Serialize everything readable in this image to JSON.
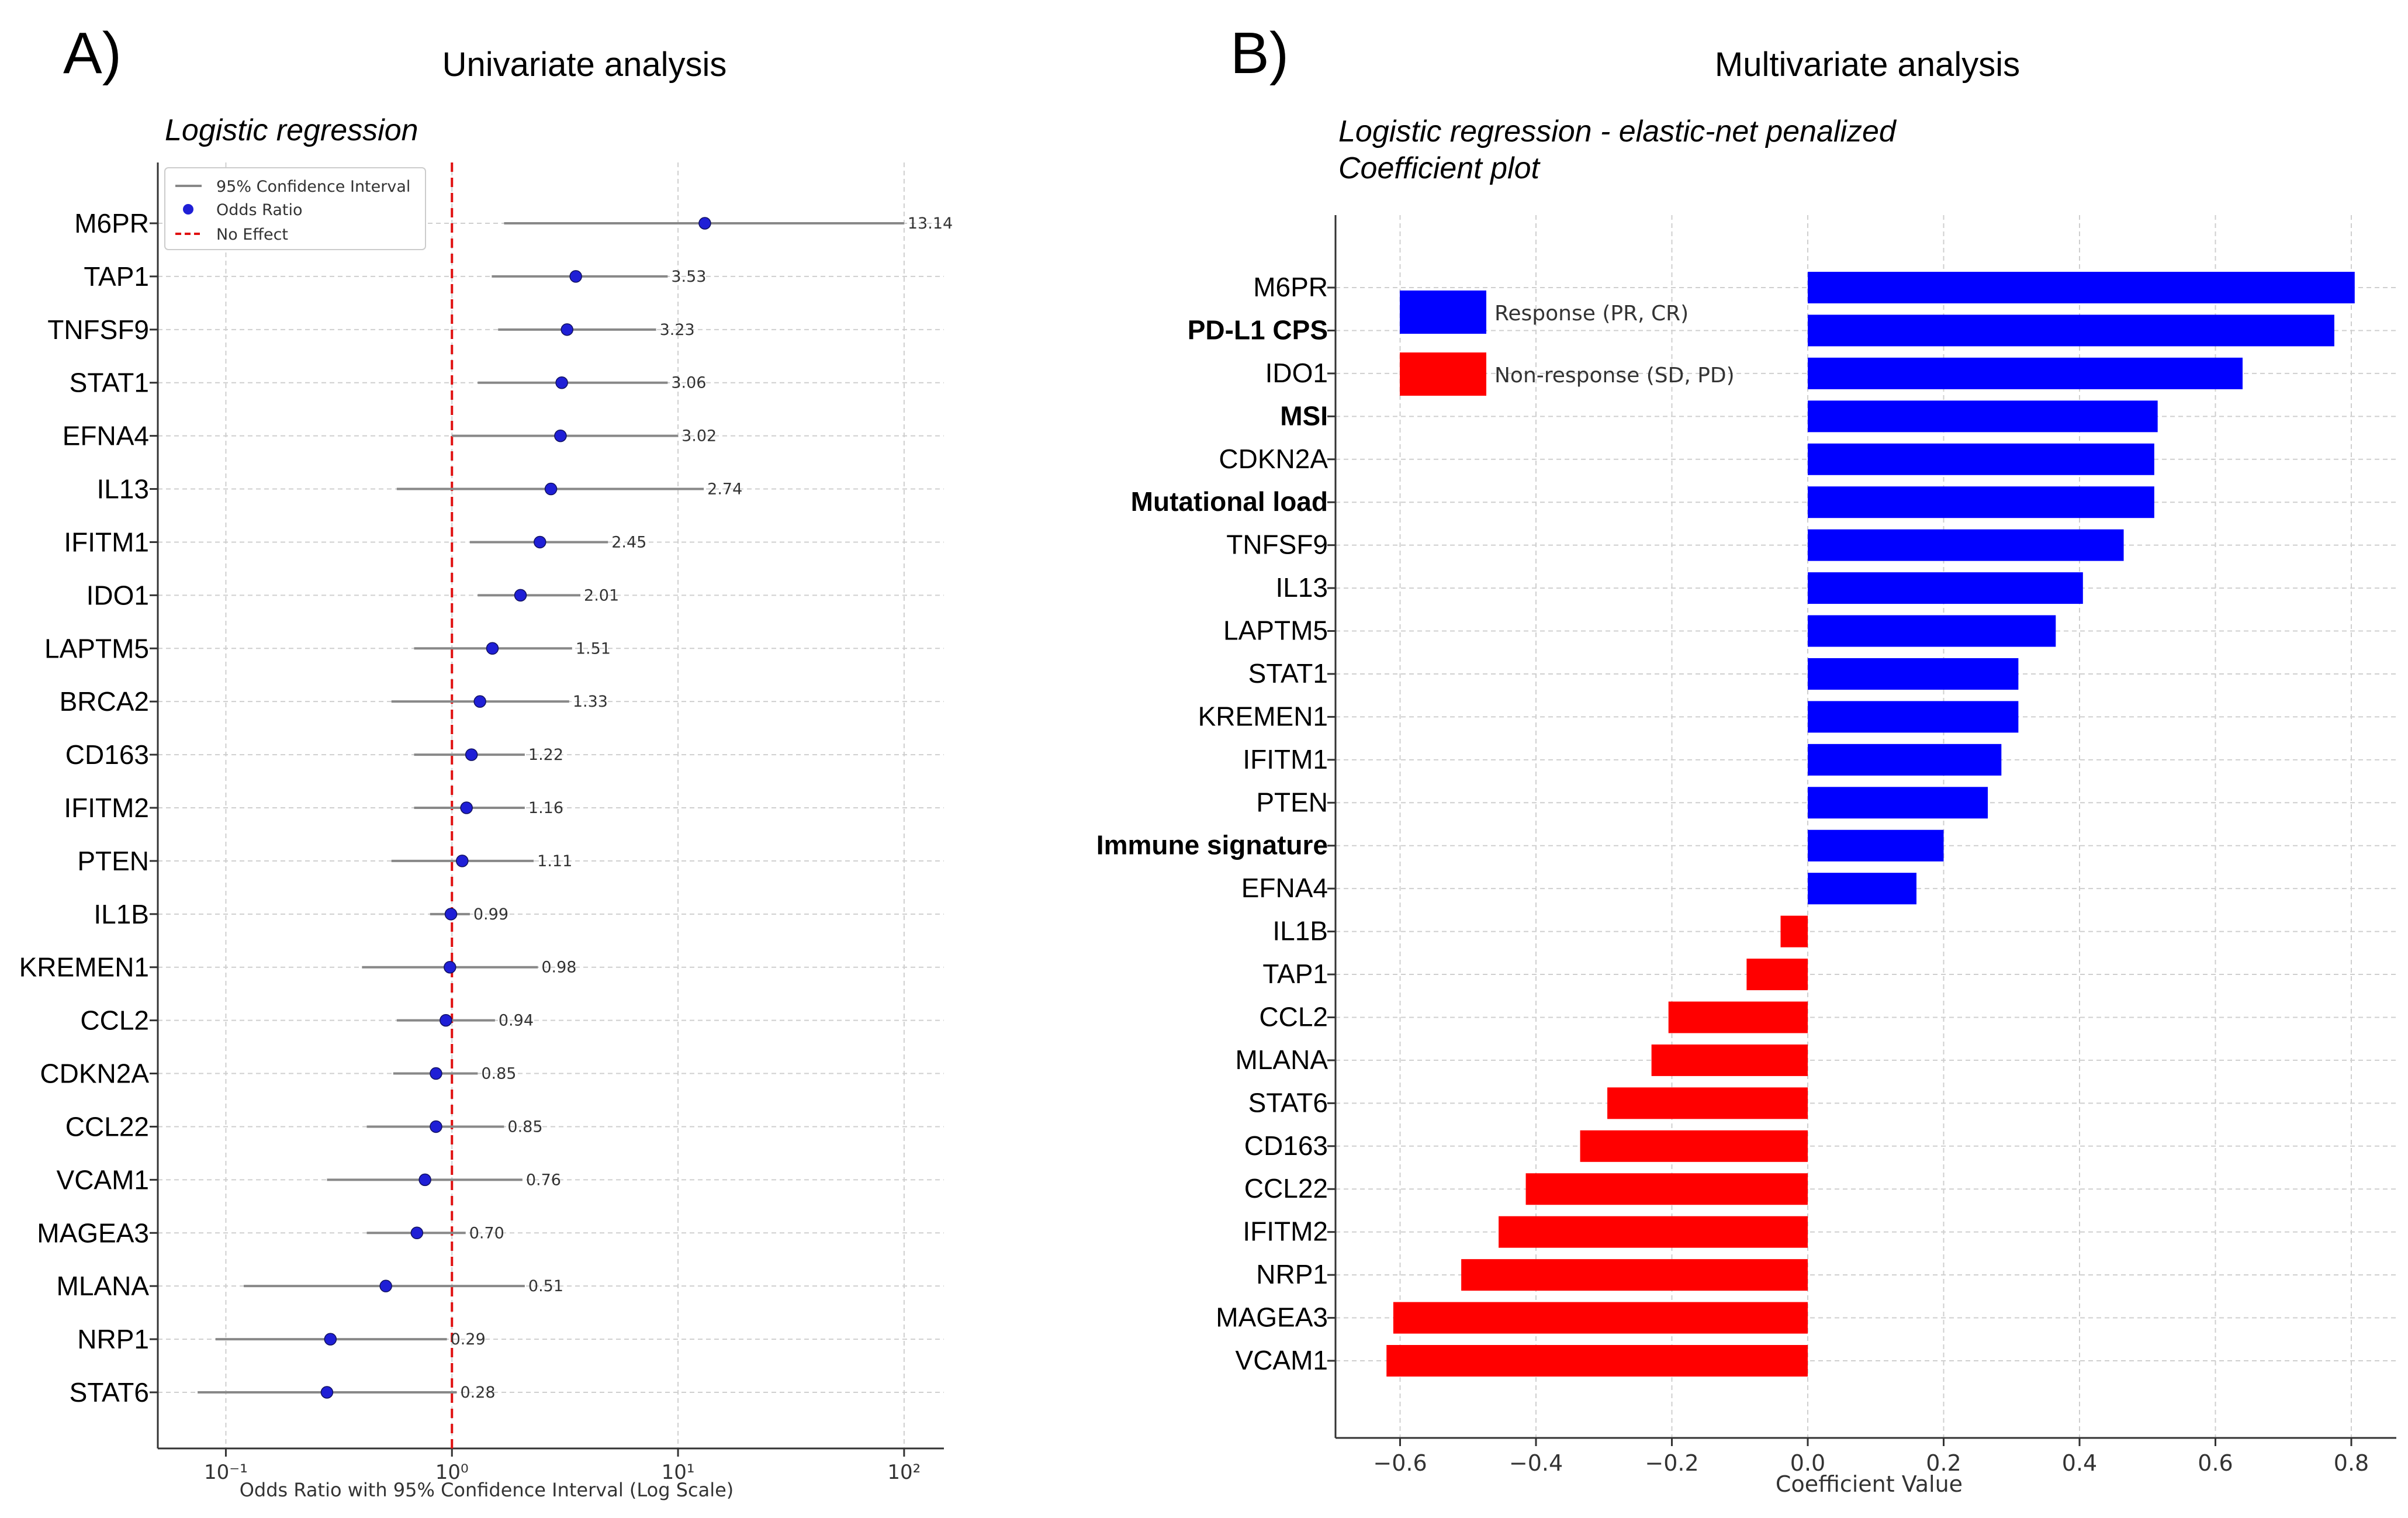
{
  "panel_a": {
    "letter": "A)",
    "title": "Univariate analysis",
    "subtitle": "Logistic regression"
  },
  "panel_b": {
    "letter": "B)",
    "title": "Multivariate analysis",
    "subtitle_line1": "Logistic regression - elastic-net penalized",
    "subtitle_line2": "Coefficient plot"
  },
  "chart_data": [
    {
      "type": "scatter",
      "subtype": "forest-plot",
      "title": "Univariate analysis",
      "subtitle": "Logistic regression",
      "xlabel": "Odds Ratio with 95% Confidence Interval (Log Scale)",
      "xscale": "log",
      "xlim": [
        0.05,
        150
      ],
      "xticks": [
        "10⁻¹",
        "10⁰",
        "10¹",
        "10²"
      ],
      "grid": true,
      "legend": [
        "95% Confidence Interval",
        "Odds Ratio",
        "No Effect"
      ],
      "legend_position": "top-left",
      "reference_line": 1,
      "colors": {
        "point": "#1f1fd6",
        "ci": "#888888",
        "reference": "#e01010"
      },
      "rows": [
        {
          "label": "M6PR",
          "or": 13.14,
          "or_label": "13.14",
          "ci": [
            1.7,
            100
          ]
        },
        {
          "label": "TAP1",
          "or": 3.53,
          "or_label": "3.53",
          "ci": [
            1.5,
            9
          ]
        },
        {
          "label": "TNFSF9",
          "or": 3.23,
          "or_label": "3.23",
          "ci": [
            1.6,
            8
          ]
        },
        {
          "label": "STAT1",
          "or": 3.06,
          "or_label": "3.06",
          "ci": [
            1.3,
            9
          ]
        },
        {
          "label": "EFNA4",
          "or": 3.02,
          "or_label": "3.02",
          "ci": [
            1.0,
            10
          ]
        },
        {
          "label": "IL13",
          "or": 2.74,
          "or_label": "2.74",
          "ci": [
            0.57,
            13
          ]
        },
        {
          "label": "IFITM1",
          "or": 2.45,
          "or_label": "2.45",
          "ci": [
            1.2,
            4.9
          ]
        },
        {
          "label": "IDO1",
          "or": 2.01,
          "or_label": "2.01",
          "ci": [
            1.3,
            3.7
          ]
        },
        {
          "label": "LAPTM5",
          "or": 1.51,
          "or_label": "1.51",
          "ci": [
            0.68,
            3.4
          ]
        },
        {
          "label": "BRCA2",
          "or": 1.33,
          "or_label": "1.33",
          "ci": [
            0.54,
            3.3
          ]
        },
        {
          "label": "CD163",
          "or": 1.22,
          "or_label": "1.22",
          "ci": [
            0.68,
            2.1
          ]
        },
        {
          "label": "IFITM2",
          "or": 1.16,
          "or_label": "1.16",
          "ci": [
            0.68,
            2.1
          ]
        },
        {
          "label": "PTEN",
          "or": 1.11,
          "or_label": "1.11",
          "ci": [
            0.54,
            2.3
          ]
        },
        {
          "label": "IL1B",
          "or": 0.99,
          "or_label": "0.99",
          "ci": [
            0.8,
            1.2
          ]
        },
        {
          "label": "KREMEN1",
          "or": 0.98,
          "or_label": "0.98",
          "ci": [
            0.4,
            2.4
          ]
        },
        {
          "label": "CCL2",
          "or": 0.94,
          "or_label": "0.94",
          "ci": [
            0.57,
            1.55
          ]
        },
        {
          "label": "CDKN2A",
          "or": 0.85,
          "or_label": "0.85",
          "ci": [
            0.55,
            1.3
          ]
        },
        {
          "label": "CCL22",
          "or": 0.85,
          "or_label": "0.85",
          "ci": [
            0.42,
            1.7
          ]
        },
        {
          "label": "VCAM1",
          "or": 0.76,
          "or_label": "0.76",
          "ci": [
            0.28,
            2.05
          ]
        },
        {
          "label": "MAGEA3",
          "or": 0.7,
          "or_label": "0.70",
          "ci": [
            0.42,
            1.15
          ]
        },
        {
          "label": "MLANA",
          "or": 0.51,
          "or_label": "0.51",
          "ci": [
            0.12,
            2.1
          ]
        },
        {
          "label": "NRP1",
          "or": 0.29,
          "or_label": "0.29",
          "ci": [
            0.09,
            0.95
          ]
        },
        {
          "label": "STAT6",
          "or": 0.28,
          "or_label": "0.28",
          "ci": [
            0.075,
            1.05
          ]
        }
      ]
    },
    {
      "type": "bar",
      "orientation": "horizontal",
      "title": "Multivariate analysis",
      "subtitle": "Logistic regression - elastic-net penalized / Coefficient plot",
      "xlabel": "Coefficient Value",
      "xlim": [
        -0.7,
        0.88
      ],
      "xticks": [
        "−0.6",
        "−0.4",
        "−0.2",
        "0.0",
        "0.2",
        "0.4",
        "0.6",
        "0.8"
      ],
      "grid": true,
      "legend": [
        "Response (PR, CR)",
        "Non-response (SD, PD)"
      ],
      "legend_position": "top-left",
      "colors": {
        "response": "#0000ff",
        "non_response": "#ff0000"
      },
      "bars": [
        {
          "label": "M6PR",
          "value": 0.805,
          "bold": false
        },
        {
          "label": "PD-L1 CPS",
          "value": 0.775,
          "bold": true
        },
        {
          "label": "IDO1",
          "value": 0.64,
          "bold": false
        },
        {
          "label": "MSI",
          "value": 0.515,
          "bold": true
        },
        {
          "label": "CDKN2A",
          "value": 0.51,
          "bold": false
        },
        {
          "label": "Mutational load",
          "value": 0.51,
          "bold": true
        },
        {
          "label": "TNFSF9",
          "value": 0.465,
          "bold": false
        },
        {
          "label": "IL13",
          "value": 0.405,
          "bold": false
        },
        {
          "label": "LAPTM5",
          "value": 0.365,
          "bold": false
        },
        {
          "label": "STAT1",
          "value": 0.31,
          "bold": false
        },
        {
          "label": "KREMEN1",
          "value": 0.31,
          "bold": false
        },
        {
          "label": "IFITM1",
          "value": 0.285,
          "bold": false
        },
        {
          "label": "PTEN",
          "value": 0.265,
          "bold": false
        },
        {
          "label": "Immune signature",
          "value": 0.2,
          "bold": true
        },
        {
          "label": "EFNA4",
          "value": 0.16,
          "bold": false
        },
        {
          "label": "IL1B",
          "value": -0.04,
          "bold": false
        },
        {
          "label": "TAP1",
          "value": -0.09,
          "bold": false
        },
        {
          "label": "CCL2",
          "value": -0.205,
          "bold": false
        },
        {
          "label": "MLANA",
          "value": -0.23,
          "bold": false
        },
        {
          "label": "STAT6",
          "value": -0.295,
          "bold": false
        },
        {
          "label": "CD163",
          "value": -0.335,
          "bold": false
        },
        {
          "label": "CCL22",
          "value": -0.415,
          "bold": false
        },
        {
          "label": "IFITM2",
          "value": -0.455,
          "bold": false
        },
        {
          "label": "NRP1",
          "value": -0.51,
          "bold": false
        },
        {
          "label": "MAGEA3",
          "value": -0.61,
          "bold": false
        },
        {
          "label": "VCAM1",
          "value": -0.62,
          "bold": false
        }
      ]
    }
  ]
}
